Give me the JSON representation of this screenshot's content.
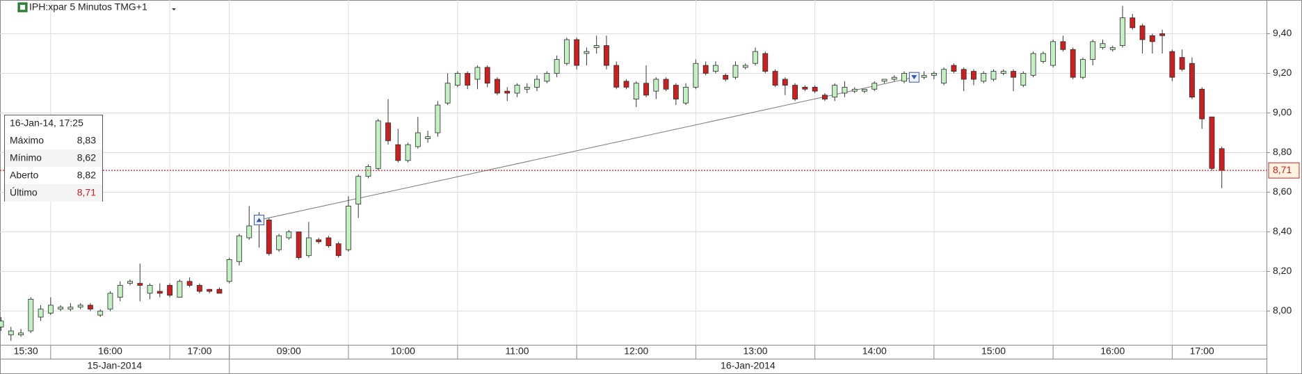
{
  "chart_data": {
    "type": "candlestick",
    "title": "IPH:xpar 5 Minutos TMG+1",
    "categories": [
      "15:30",
      null,
      null,
      null,
      null,
      "16:00",
      null,
      null,
      null,
      null,
      null,
      null,
      null,
      null,
      null,
      null,
      null,
      "17:00",
      null,
      null,
      null,
      null,
      null,
      "09:00",
      null,
      null,
      null,
      null,
      null,
      null,
      null,
      null,
      null,
      null,
      null,
      "10:00",
      null,
      null,
      null,
      null,
      null,
      null,
      null,
      null,
      null,
      null,
      "11:00",
      null,
      null,
      null,
      null,
      null,
      null,
      null,
      null,
      null,
      null,
      null,
      "12:00",
      null,
      null,
      null,
      null,
      null,
      null,
      null,
      null,
      null,
      null,
      null,
      "13:00",
      null,
      null,
      null,
      null,
      null,
      null,
      null,
      null,
      null,
      null,
      null,
      "14:00",
      null,
      null,
      null,
      null,
      null,
      null,
      null,
      null,
      null,
      null,
      null,
      "15:00",
      null,
      null,
      null,
      null,
      null,
      null,
      null,
      null,
      null,
      null,
      null,
      "16:00",
      null,
      null,
      null,
      null,
      null,
      null,
      null,
      null,
      null,
      null,
      null,
      "17:00",
      null,
      null,
      null,
      null,
      null
    ],
    "dates": [
      "15-Jan-2014",
      null,
      null,
      null,
      null,
      null,
      null,
      null,
      null,
      null,
      null,
      null,
      null,
      null,
      null,
      null,
      null,
      null,
      null,
      null,
      null,
      null,
      null,
      "16-Jan-2014",
      null,
      null,
      null,
      null,
      null,
      null,
      null,
      null,
      null,
      null,
      null,
      null,
      null,
      null,
      null,
      null,
      null,
      null,
      null,
      null,
      null,
      null,
      null,
      null,
      null,
      null,
      null,
      null,
      null,
      null,
      null,
      null,
      null,
      null,
      null,
      null,
      null,
      null,
      null,
      null,
      null,
      null,
      null,
      null,
      null,
      null,
      null,
      null,
      null,
      null,
      null,
      null,
      null,
      null,
      null,
      null,
      null,
      null,
      null,
      null,
      null,
      null,
      null,
      null,
      null,
      null,
      null,
      null,
      null,
      null,
      null,
      null,
      null,
      null,
      null,
      null,
      null,
      null,
      null,
      null,
      null,
      null,
      null,
      null,
      null,
      null,
      null,
      null,
      null,
      null,
      null,
      null,
      null,
      null,
      null,
      null,
      null,
      null,
      null,
      null,
      null,
      null,
      null,
      null
    ],
    "open": [
      7.92,
      7.88,
      7.88,
      7.9,
      7.97,
      7.99,
      8.01,
      8.01,
      8.02,
      8.03,
      7.98,
      8.01,
      8.07,
      8.14,
      8.14,
      8.09,
      8.1,
      8.13,
      8.07,
      8.15,
      8.13,
      8.11,
      8.11,
      8.15,
      8.25,
      8.37,
      8.44,
      8.46,
      8.31,
      8.37,
      8.4,
      8.28,
      8.36,
      8.37,
      8.34,
      8.31,
      8.54,
      8.68,
      8.72,
      8.95,
      8.84,
      8.76,
      8.83,
      8.87,
      8.9,
      9.05,
      9.14,
      9.2,
      9.17,
      9.23,
      9.17,
      9.11,
      9.1,
      9.12,
      9.13,
      9.16,
      9.2,
      9.25,
      9.37,
      9.3,
      9.33,
      9.34,
      9.24,
      9.16,
      9.07,
      9.15,
      9.11,
      9.17,
      9.14,
      9.05,
      9.13,
      9.24,
      9.21,
      9.19,
      9.18,
      9.23,
      9.25,
      9.3,
      9.21,
      9.17,
      9.14,
      9.13,
      9.13,
      9.09,
      9.08,
      9.1,
      9.11,
      9.11,
      9.12,
      9.16,
      9.17,
      9.16,
      9.18,
      9.18,
      9.19,
      9.15,
      9.24,
      9.22,
      9.21,
      9.16,
      9.17,
      9.2,
      9.21,
      9.14,
      9.19,
      9.26,
      9.24,
      9.36,
      9.32,
      9.18,
      9.27,
      9.33,
      9.32,
      9.34,
      9.48,
      9.44,
      9.39,
      9.4,
      9.31,
      9.28,
      9.25,
      9.12,
      8.98,
      8.82
    ],
    "high": [
      7.97,
      7.92,
      7.91,
      8.07,
      8.03,
      8.07,
      8.03,
      8.04,
      8.04,
      8.04,
      8.01,
      8.1,
      8.15,
      8.16,
      8.24,
      8.14,
      8.14,
      8.14,
      8.16,
      8.17,
      8.14,
      8.11,
      8.12,
      8.27,
      8.39,
      8.53,
      8.5,
      8.47,
      8.39,
      8.41,
      8.4,
      8.45,
      8.37,
      8.38,
      8.35,
      8.58,
      8.69,
      8.74,
      8.97,
      9.07,
      8.92,
      8.85,
      8.98,
      8.91,
      9.06,
      9.2,
      9.21,
      9.21,
      9.24,
      9.24,
      9.18,
      9.13,
      9.15,
      9.15,
      9.19,
      9.21,
      9.29,
      9.38,
      9.38,
      9.33,
      9.39,
      9.39,
      9.26,
      9.17,
      9.16,
      9.24,
      9.18,
      9.18,
      9.15,
      9.15,
      9.27,
      9.26,
      9.26,
      9.2,
      9.26,
      9.25,
      9.33,
      9.31,
      9.22,
      9.18,
      9.15,
      9.14,
      9.14,
      9.1,
      9.15,
      9.16,
      9.13,
      9.12,
      9.16,
      9.17,
      9.19,
      9.21,
      9.19,
      9.21,
      9.21,
      9.23,
      9.25,
      9.23,
      9.22,
      9.21,
      9.22,
      9.22,
      9.22,
      9.21,
      9.31,
      9.31,
      9.37,
      9.39,
      9.33,
      9.28,
      9.37,
      9.37,
      9.34,
      9.54,
      9.5,
      9.45,
      9.4,
      9.42,
      9.32,
      9.32,
      9.28,
      9.13,
      8.98,
      8.83
    ],
    "low": [
      7.9,
      7.85,
      7.87,
      7.89,
      7.95,
      7.98,
      8.0,
      8.0,
      8.01,
      8.0,
      7.97,
      8.0,
      8.05,
      8.13,
      8.05,
      8.06,
      8.07,
      8.07,
      8.07,
      8.12,
      8.09,
      8.09,
      8.09,
      8.14,
      8.23,
      8.36,
      8.32,
      8.28,
      8.3,
      8.36,
      8.26,
      8.27,
      8.34,
      8.32,
      8.27,
      8.3,
      8.47,
      8.67,
      8.71,
      8.84,
      8.75,
      8.75,
      8.82,
      8.85,
      8.88,
      9.04,
      9.13,
      9.12,
      9.12,
      9.13,
      9.09,
      9.06,
      9.08,
      9.1,
      9.11,
      9.15,
      9.18,
      9.24,
      9.22,
      9.24,
      9.3,
      9.22,
      9.12,
      9.12,
      9.03,
      9.08,
      9.07,
      9.11,
      9.04,
      9.04,
      9.12,
      9.19,
      9.2,
      9.16,
      9.17,
      9.22,
      9.24,
      9.2,
      9.13,
      9.09,
      9.06,
      9.11,
      9.1,
      9.06,
      9.06,
      9.08,
      9.1,
      9.1,
      9.11,
      9.15,
      9.16,
      9.15,
      9.17,
      9.17,
      9.17,
      9.14,
      9.2,
      9.11,
      9.14,
      9.15,
      9.16,
      9.19,
      9.11,
      9.13,
      9.18,
      9.25,
      9.23,
      9.31,
      9.17,
      9.17,
      9.24,
      9.32,
      9.31,
      9.33,
      9.42,
      9.3,
      9.3,
      9.3,
      9.16,
      9.21,
      9.07,
      8.92,
      8.71,
      8.62
    ],
    "close": [
      7.95,
      7.9,
      7.89,
      8.06,
      8.01,
      8.03,
      8.02,
      8.02,
      8.03,
      8.01,
      8.0,
      8.09,
      8.13,
      8.15,
      8.13,
      8.13,
      8.09,
      8.08,
      8.15,
      8.13,
      8.1,
      8.1,
      8.09,
      8.26,
      8.38,
      8.43,
      8.46,
      8.29,
      8.38,
      8.4,
      8.27,
      8.37,
      8.35,
      8.33,
      8.28,
      8.53,
      8.68,
      8.73,
      8.96,
      8.86,
      8.76,
      8.84,
      8.9,
      8.88,
      9.04,
      9.15,
      9.2,
      9.14,
      9.23,
      9.15,
      9.1,
      9.1,
      9.14,
      9.13,
      9.17,
      9.2,
      9.27,
      9.37,
      9.24,
      9.31,
      9.34,
      9.24,
      9.13,
      9.13,
      9.15,
      9.09,
      9.17,
      9.12,
      9.07,
      9.13,
      9.25,
      9.2,
      9.24,
      9.17,
      9.24,
      9.24,
      9.31,
      9.21,
      9.14,
      9.14,
      9.07,
      9.12,
      9.11,
      9.07,
      9.14,
      9.13,
      9.12,
      9.12,
      9.15,
      9.17,
      9.18,
      9.2,
      9.18,
      9.19,
      9.2,
      9.22,
      9.21,
      9.17,
      9.17,
      9.2,
      9.21,
      9.21,
      9.18,
      9.2,
      9.3,
      9.3,
      9.36,
      9.32,
      9.18,
      9.27,
      9.36,
      9.35,
      9.33,
      9.48,
      9.43,
      9.37,
      9.36,
      9.39,
      9.18,
      9.22,
      9.08,
      8.97,
      8.72,
      8.71
    ],
    "up_color": "#c3f0c3",
    "down_color": "#cc2020",
    "ylim": [
      7.83,
      9.57
    ],
    "yticks": [
      {
        "value": 8.0,
        "label": "8,00"
      },
      {
        "value": 8.2,
        "label": "8,20"
      },
      {
        "value": 8.4,
        "label": "8,40"
      },
      {
        "value": 8.6,
        "label": "8,60"
      },
      {
        "value": 8.8,
        "label": "8,80"
      },
      {
        "value": 9.0,
        "label": "9,00"
      },
      {
        "value": 9.2,
        "label": "9,20"
      },
      {
        "value": 9.4,
        "label": "9,40"
      }
    ],
    "grid": true,
    "last_price": {
      "value": 8.71,
      "label": "8,71",
      "color": "#cc2020"
    },
    "trend_line": {
      "x": [
        26,
        92
      ],
      "y": [
        8.46,
        9.18
      ]
    },
    "tooltip": {
      "title": "16-Jan-14, 17:25",
      "rows": [
        {
          "label": "Máximo",
          "value": "8,83"
        },
        {
          "label": "Mínimo",
          "value": "8,62"
        },
        {
          "label": "Aberto",
          "value": "8,82"
        },
        {
          "label": "Último",
          "value": "8,71"
        }
      ]
    }
  }
}
